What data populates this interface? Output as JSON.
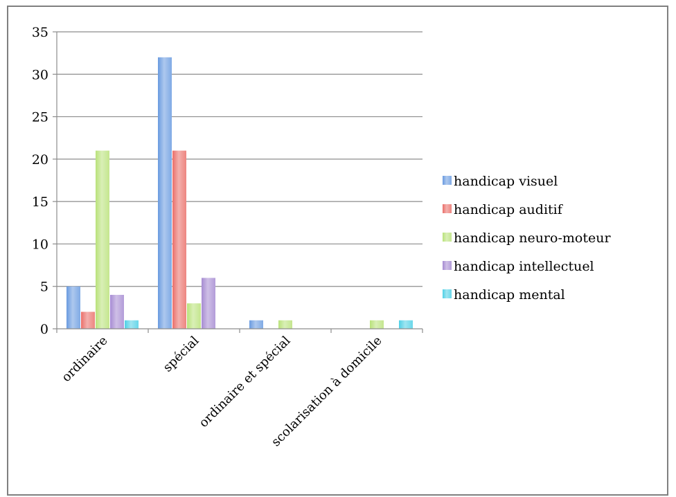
{
  "chart_data": {
    "type": "bar",
    "categories": [
      "ordinaire",
      "spécial",
      "ordinaire et spécial",
      "scolarisation à domicile"
    ],
    "series": [
      {
        "name": "handicap visuel",
        "values": [
          5,
          32,
          1,
          0
        ],
        "color": "#6a9be0"
      },
      {
        "name": "handicap auditif",
        "values": [
          2,
          21,
          0,
          0
        ],
        "color": "#ea6f6a"
      },
      {
        "name": "handicap neuro-moteur",
        "values": [
          21,
          3,
          1,
          1
        ],
        "color": "#b9e27a"
      },
      {
        "name": "handicap intellectuel",
        "values": [
          4,
          6,
          0,
          0
        ],
        "color": "#a68bd2"
      },
      {
        "name": "handicap mental",
        "values": [
          1,
          0,
          0,
          1
        ],
        "color": "#4fd0e6"
      }
    ],
    "ylim": [
      0,
      35
    ],
    "yticks": [
      "0",
      "5",
      "10",
      "15",
      "20",
      "25",
      "30",
      "35"
    ],
    "grid": true,
    "legend": "right"
  }
}
